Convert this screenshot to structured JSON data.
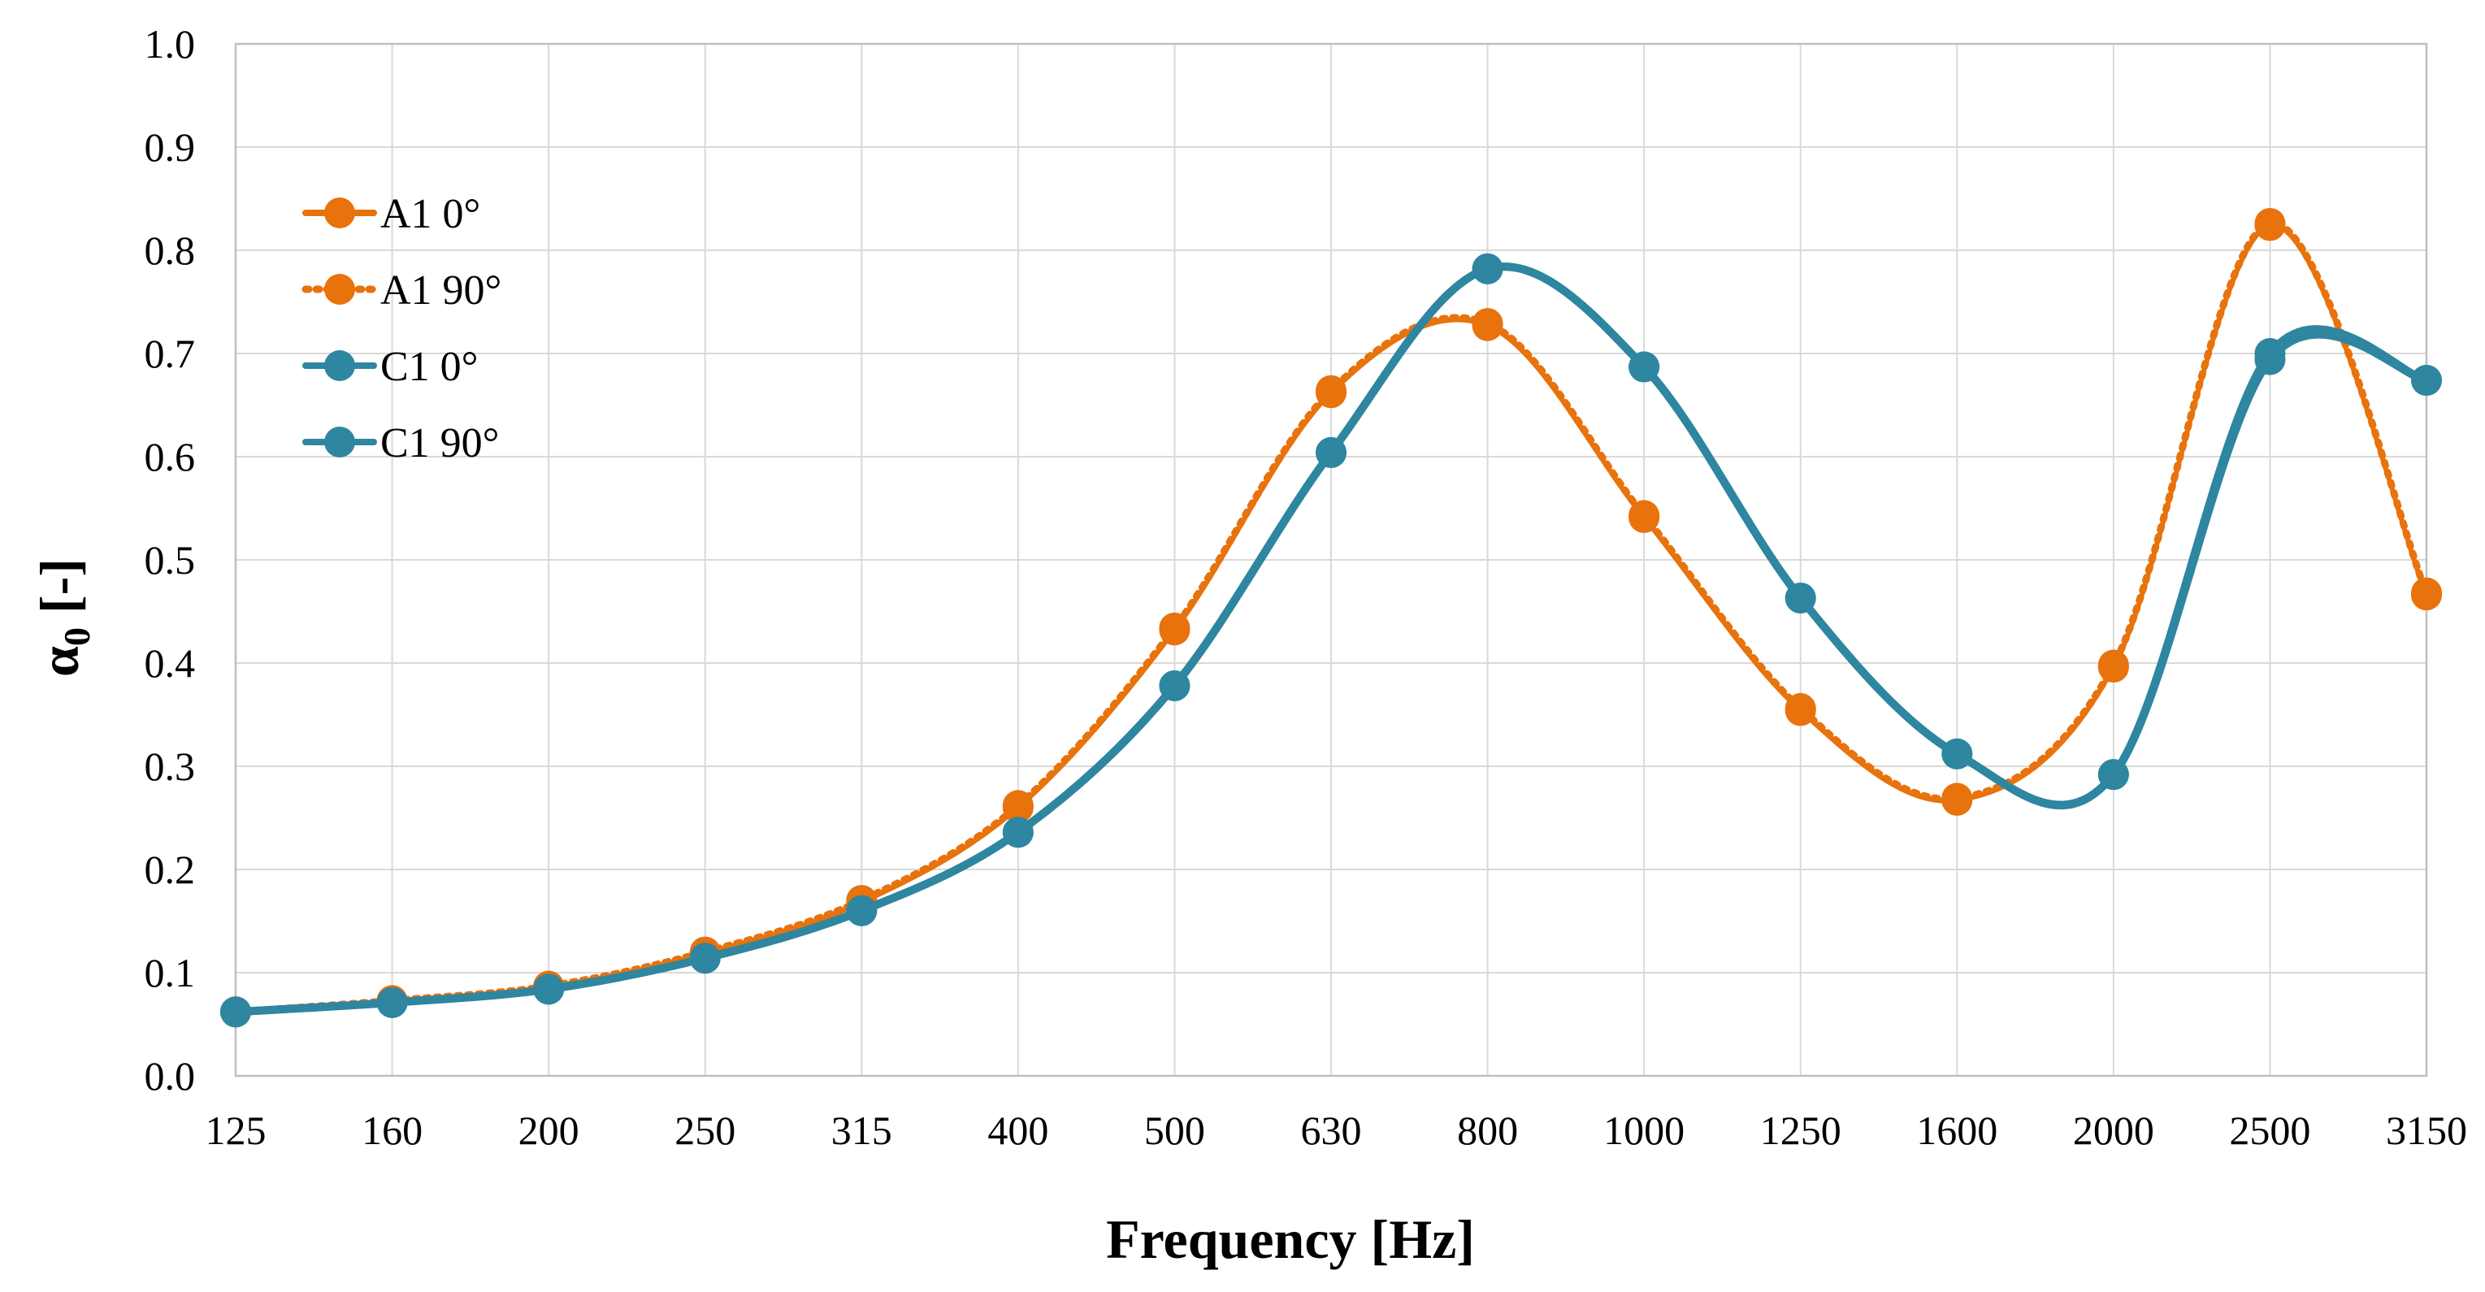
{
  "chart_data": {
    "type": "line",
    "title": "",
    "xlabel": "Frequency [Hz]",
    "ylabel_symbol": "α",
    "ylabel_subscript": "0",
    "ylabel_unit": " [-]",
    "categories": [
      "125",
      "160",
      "200",
      "250",
      "315",
      "400",
      "500",
      "630",
      "800",
      "1000",
      "1250",
      "1600",
      "2000",
      "2500",
      "3150"
    ],
    "y_ticks": [
      "0.0",
      "0.1",
      "0.2",
      "0.3",
      "0.4",
      "0.5",
      "0.6",
      "0.7",
      "0.8",
      "0.9",
      "1.0"
    ],
    "ylim": [
      0,
      1
    ],
    "grid": true,
    "legend_position": "top-left",
    "series": [
      {
        "name": "A1 0°",
        "color": "#e8720c",
        "line_style": "solid",
        "values": [
          0.062,
          0.072,
          0.086,
          0.118,
          0.168,
          0.26,
          0.432,
          0.662,
          0.727,
          0.541,
          0.354,
          0.267,
          0.396,
          0.824,
          0.466
        ]
      },
      {
        "name": "A1 90°",
        "color": "#e8720c",
        "line_style": "dotted",
        "values": [
          0.062,
          0.073,
          0.087,
          0.12,
          0.17,
          0.262,
          0.434,
          0.664,
          0.729,
          0.543,
          0.356,
          0.269,
          0.398,
          0.826,
          0.468
        ]
      },
      {
        "name": "C1 0°",
        "color": "#2e86a0",
        "line_style": "solid",
        "values": [
          0.062,
          0.071,
          0.084,
          0.114,
          0.16,
          0.236,
          0.378,
          0.604,
          0.782,
          0.687,
          0.463,
          0.312,
          0.292,
          0.694,
          0.674
        ]
      },
      {
        "name": "C1 90°",
        "color": "#2e86a0",
        "line_style": "solid",
        "values": [
          0.062,
          0.071,
          0.084,
          0.114,
          0.16,
          0.236,
          0.378,
          0.604,
          0.782,
          0.687,
          0.463,
          0.312,
          0.292,
          0.7,
          0.674
        ]
      }
    ]
  }
}
